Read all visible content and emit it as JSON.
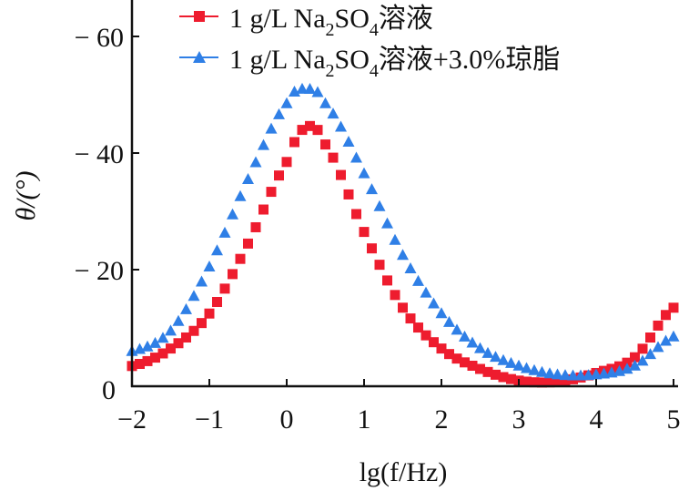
{
  "chart_data": {
    "type": "scatter",
    "title": "",
    "xlabel": "lg(f/Hz)",
    "ylabel": "θ/(°)",
    "xlim": [
      -2,
      5
    ],
    "ylim": [
      0,
      -66
    ],
    "x_ticks": [
      -2,
      -1,
      0,
      1,
      2,
      3,
      4,
      5
    ],
    "x_tick_labels": [
      "−2",
      "−1",
      "0",
      "1",
      "2",
      "3",
      "4",
      "5"
    ],
    "y_ticks": [
      0,
      -20,
      -40,
      -60
    ],
    "y_tick_labels": [
      "0",
      "− 20",
      "− 40",
      "− 60"
    ],
    "grid": false,
    "legend_position": "top",
    "series": [
      {
        "name": "1 g/L Na2SO4溶液",
        "name_parts": [
          "1 g/L Na",
          "2",
          "SO",
          "4",
          "溶液"
        ],
        "marker": "square",
        "color": "#ee1c2e",
        "x_keys": [
          -2,
          -1.5,
          -1,
          -0.5,
          0,
          0.25,
          0.5,
          1,
          1.5,
          2,
          2.5,
          3,
          3.5,
          4,
          4.5,
          5
        ],
        "y_keys": [
          -3,
          -6,
          -12,
          -24,
          -38,
          -44,
          -41,
          -26,
          -13,
          -6,
          -2.5,
          -0.5,
          -0.3,
          -1.8,
          -4.5,
          -13
        ]
      },
      {
        "name": "1 g/L Na2SO4溶液+3.0%琼脂",
        "name_parts": [
          "1 g/L Na",
          "2",
          "SO",
          "4",
          "溶液+3.0%琼脂"
        ],
        "marker": "triangle",
        "color": "#2f7fe6",
        "x_keys": [
          -2,
          -1.5,
          -1,
          -0.5,
          0,
          0.25,
          0.5,
          1,
          1.5,
          2,
          2.5,
          3,
          3.5,
          4,
          4.5,
          5
        ],
        "y_keys": [
          -5.5,
          -9,
          -20,
          -35,
          -48,
          -50.5,
          -48,
          -36,
          -22,
          -12,
          -6,
          -3,
          -1.5,
          -1.5,
          -3,
          -8
        ]
      }
    ],
    "step": 0.1
  }
}
